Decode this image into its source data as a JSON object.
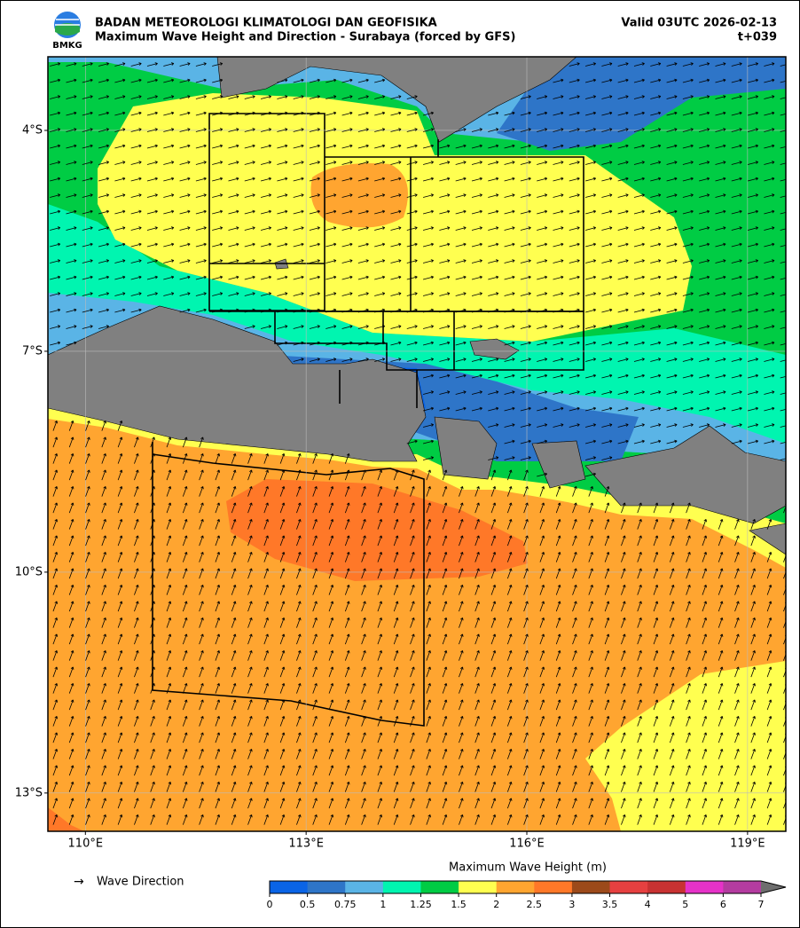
{
  "header": {
    "logo_text": "BMKG",
    "agency": "BADAN METEOROLOGI KLIMATOLOGI DAN GEOFISIKA",
    "title": "Maximum Wave Height and Direction - Surabaya (forced by GFS)",
    "valid": "Valid 03UTC 2026-02-13",
    "lead": "t+039"
  },
  "map": {
    "lonlim": [
      109.49,
      119.52
    ],
    "latlim": [
      -13.52,
      -3.0
    ],
    "lon_ticks": [
      {
        "value": 110,
        "label": "110°E"
      },
      {
        "value": 113,
        "label": "113°E"
      },
      {
        "value": 116,
        "label": "116°E"
      },
      {
        "value": 119,
        "label": "119°E"
      }
    ],
    "lat_ticks": [
      {
        "value": -4,
        "label": "4°S"
      },
      {
        "value": -7,
        "label": "7°S"
      },
      {
        "value": -10,
        "label": "10°S"
      },
      {
        "value": -13,
        "label": "13°S"
      }
    ]
  },
  "legend": {
    "arrow_label": "Wave Direction"
  },
  "colorbar": {
    "title": "Maximum Wave Height (m)",
    "ticks": [
      0,
      0.5,
      0.75,
      1,
      1.25,
      1.5,
      2,
      2.5,
      3,
      3.5,
      4,
      5,
      6,
      7
    ],
    "colors": [
      "#0a64e6",
      "#2e75c8",
      "#5ab4e6",
      "#00f5b0",
      "#00cc44",
      "#ffff50",
      "#ffa530",
      "#ff7828",
      "#9c4a1a",
      "#e64040",
      "#c83232",
      "#e632c8",
      "#b43ca0",
      "#6e6e6e"
    ]
  }
}
